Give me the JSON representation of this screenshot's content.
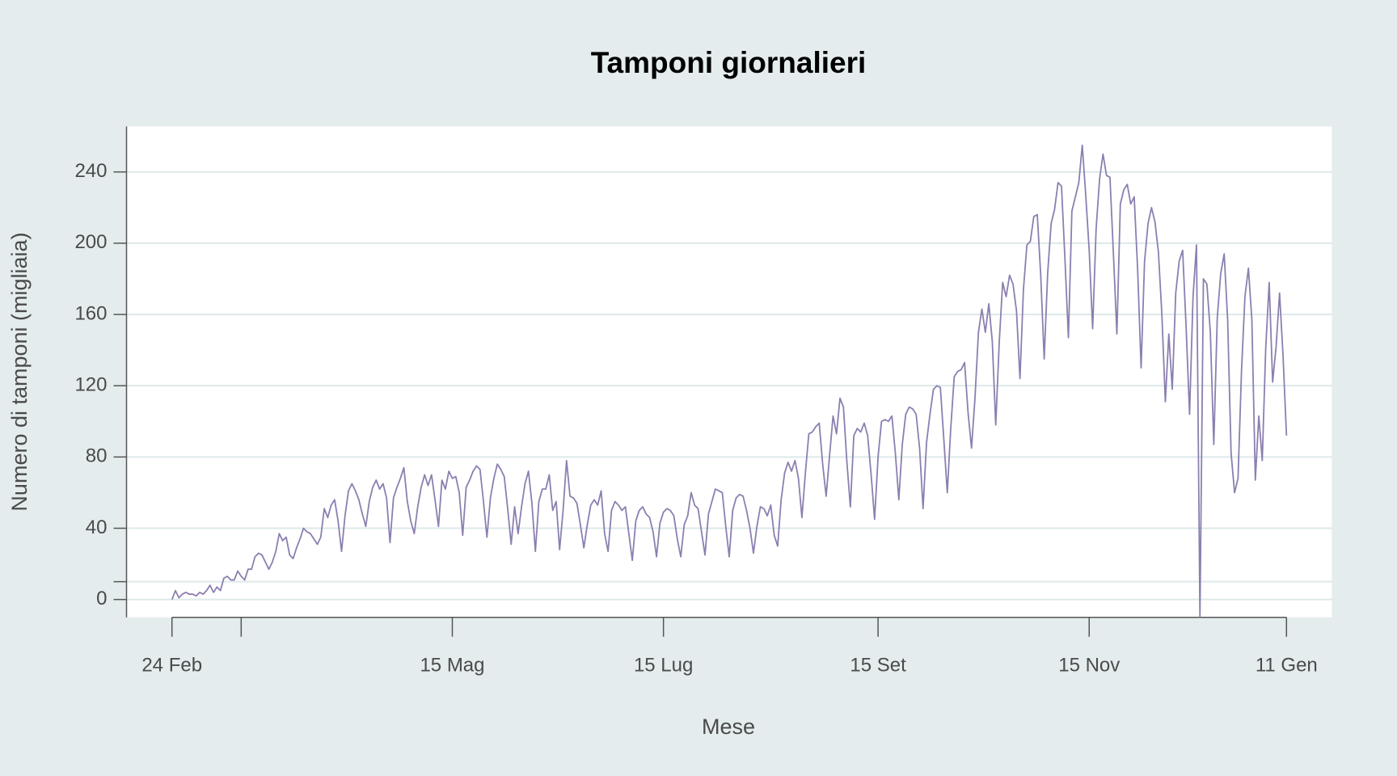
{
  "chart_data": {
    "type": "line",
    "title": "Tamponi giornalieri",
    "x_label": "Mese",
    "y_label": "Numero di tamponi (migliaia)",
    "color": "#8c7fb0",
    "grid": true,
    "x": [
      "24 Feb",
      "25 Feb",
      "26 Feb",
      "27 Feb",
      "28 Feb",
      "29 Feb",
      "1 Mar",
      "2 Mar",
      "3 Mar",
      "4 Mar",
      "5 Mar",
      "6 Mar",
      "7 Mar",
      "8 Mar",
      "9 Mar",
      "10 Mar",
      "11 Mar",
      "12 Mar",
      "13 Mar",
      "14 Mar",
      "15 Mar",
      "16 Mar",
      "17 Mar",
      "18 Mar",
      "19 Mar",
      "20 Mar",
      "21 Mar",
      "22 Mar",
      "23 Mar",
      "24 Mar",
      "25 Mar",
      "26 Mar",
      "27 Mar",
      "28 Mar",
      "29 Mar",
      "30 Mar",
      "31 Mar",
      "1 Apr",
      "2 Apr",
      "3 Apr",
      "4 Apr",
      "5 Apr",
      "6 Apr",
      "7 Apr",
      "8 Apr",
      "9 Apr",
      "10 Apr",
      "11 Apr",
      "12 Apr",
      "13 Apr",
      "14 Apr",
      "15 Apr",
      "16 Apr",
      "17 Apr",
      "18 Apr",
      "19 Apr",
      "20 Apr",
      "21 Apr",
      "22 Apr",
      "23 Apr",
      "24 Apr",
      "25 Apr",
      "26 Apr",
      "27 Apr",
      "28 Apr",
      "29 Apr",
      "30 Apr",
      "1 Mag",
      "2 Mag",
      "3 Mag",
      "4 Mag",
      "5 Mag",
      "6 Mag",
      "7 Mag",
      "8 Mag",
      "9 Mag",
      "10 Mag",
      "11 Mag",
      "12 Mag",
      "13 Mag",
      "14 Mag",
      "15 Mag",
      "16 Mag",
      "17 Mag",
      "18 Mag",
      "19 Mag",
      "20 Mag",
      "21 Mag",
      "22 Mag",
      "23 Mag",
      "24 Mag",
      "25 Mag",
      "26 Mag",
      "27 Mag",
      "28 Mag",
      "29 Mag",
      "30 Mag",
      "31 Mag",
      "1 Giu",
      "2 Giu",
      "3 Giu",
      "4 Giu",
      "5 Giu",
      "6 Giu",
      "7 Giu",
      "8 Giu",
      "9 Giu",
      "10 Giu",
      "11 Giu",
      "12 Giu",
      "13 Giu",
      "14 Giu",
      "15 Giu",
      "16 Giu",
      "17 Giu",
      "18 Giu",
      "19 Giu",
      "20 Giu",
      "21 Giu",
      "22 Giu",
      "23 Giu",
      "24 Giu",
      "25 Giu",
      "26 Giu",
      "27 Giu",
      "28 Giu",
      "29 Giu",
      "30 Giu",
      "1 Lug",
      "2 Lug",
      "3 Lug",
      "4 Lug",
      "5 Lug",
      "6 Lug",
      "7 Lug",
      "8 Lug",
      "9 Lug",
      "10 Lug",
      "11 Lug",
      "12 Lug",
      "13 Lug",
      "14 Lug",
      "15 Lug",
      "16 Lug",
      "17 Lug",
      "18 Lug",
      "19 Lug",
      "20 Lug",
      "21 Lug",
      "22 Lug",
      "23 Lug",
      "24 Lug",
      "25 Lug",
      "26 Lug",
      "27 Lug",
      "28 Lug",
      "29 Lug",
      "30 Lug",
      "31 Lug",
      "1 Ago",
      "2 Ago",
      "3 Ago",
      "4 Ago",
      "5 Ago",
      "6 Ago",
      "7 Ago",
      "8 Ago",
      "9 Ago",
      "10 Ago",
      "11 Ago",
      "12 Ago",
      "13 Ago",
      "14 Ago",
      "15 Ago",
      "16 Ago",
      "17 Ago",
      "18 Ago",
      "19 Ago",
      "20 Ago",
      "21 Ago",
      "22 Ago",
      "23 Ago",
      "24 Ago",
      "25 Ago",
      "26 Ago",
      "27 Ago",
      "28 Ago",
      "29 Ago",
      "30 Ago",
      "31 Ago",
      "1 Set",
      "2 Set",
      "3 Set",
      "4 Set",
      "5 Set",
      "6 Set",
      "7 Set",
      "8 Set",
      "9 Set",
      "10 Set",
      "11 Set",
      "12 Set",
      "13 Set",
      "14 Set",
      "15 Set",
      "16 Set",
      "17 Set",
      "18 Set",
      "19 Set",
      "20 Set",
      "21 Set",
      "22 Set",
      "23 Set",
      "24 Set",
      "25 Set",
      "26 Set",
      "27 Set",
      "28 Set",
      "29 Set",
      "30 Set",
      "1 Ott",
      "2 Ott",
      "3 Ott",
      "4 Ott",
      "5 Ott",
      "6 Ott",
      "7 Ott",
      "8 Ott",
      "9 Ott",
      "10 Ott",
      "11 Ott",
      "12 Ott",
      "13 Ott",
      "14 Ott",
      "15 Ott",
      "16 Ott",
      "17 Ott",
      "18 Ott",
      "19 Ott",
      "20 Ott",
      "21 Ott",
      "22 Ott",
      "23 Ott",
      "24 Ott",
      "25 Ott",
      "26 Ott",
      "27 Ott",
      "28 Ott",
      "29 Ott",
      "30 Ott",
      "31 Ott",
      "1 Nov",
      "2 Nov",
      "3 Nov",
      "4 Nov",
      "5 Nov",
      "6 Nov",
      "7 Nov",
      "8 Nov",
      "9 Nov",
      "10 Nov",
      "11 Nov",
      "12 Nov",
      "13 Nov",
      "14 Nov",
      "15 Nov",
      "16 Nov",
      "17 Nov",
      "18 Nov",
      "19 Nov",
      "20 Nov",
      "21 Nov",
      "22 Nov",
      "23 Nov",
      "24 Nov",
      "25 Nov",
      "26 Nov",
      "27 Nov",
      "28 Nov",
      "29 Nov",
      "30 Nov",
      "1 Dic",
      "2 Dic",
      "3 Dic",
      "4 Dic",
      "5 Dic",
      "6 Dic",
      "7 Dic",
      "8 Dic",
      "9 Dic",
      "10 Dic",
      "11 Dic",
      "12 Dic",
      "13 Dic",
      "14 Dic",
      "15 Dic",
      "16 Dic",
      "17 Dic",
      "18 Dic",
      "19 Dic",
      "20 Dic",
      "21 Dic",
      "22 Dic",
      "23 Dic",
      "24 Dic",
      "25 Dic",
      "26 Dic",
      "27 Dic",
      "28 Dic",
      "29 Dic",
      "30 Dic",
      "31 Dic",
      "1 Gen",
      "2 Gen",
      "3 Gen",
      "4 Gen",
      "5 Gen",
      "6 Gen",
      "7 Gen",
      "8 Gen",
      "9 Gen",
      "10 Gen",
      "11 Gen"
    ],
    "values": [
      0,
      5,
      1,
      3,
      4,
      3,
      3,
      2,
      4,
      3,
      5,
      8,
      4,
      7,
      5,
      12,
      13,
      11,
      11,
      16,
      13,
      11,
      17,
      17,
      24,
      26,
      25,
      21,
      17,
      21,
      27,
      37,
      33,
      35,
      25,
      23,
      29,
      34,
      40,
      38,
      37,
      34,
      31,
      35,
      51,
      46,
      53,
      56,
      44,
      27,
      47,
      61,
      65,
      61,
      56,
      48,
      41,
      55,
      63,
      67,
      62,
      65,
      57,
      32,
      57,
      63,
      68,
      74,
      55,
      44,
      37,
      52,
      63,
      70,
      64,
      70,
      56,
      41,
      67,
      62,
      72,
      68,
      69,
      60,
      36,
      63,
      67,
      72,
      75,
      73,
      55,
      35,
      57,
      68,
      76,
      73,
      69,
      51,
      31,
      52,
      37,
      52,
      65,
      72,
      54,
      27,
      55,
      62,
      62,
      70,
      50,
      55,
      28,
      50,
      78,
      58,
      57,
      54,
      42,
      29,
      42,
      53,
      56,
      53,
      61,
      37,
      27,
      50,
      55,
      53,
      50,
      52,
      37,
      22,
      44,
      50,
      52,
      48,
      46,
      38,
      24,
      43,
      49,
      51,
      50,
      47,
      34,
      24,
      42,
      47,
      60,
      53,
      51,
      38,
      25,
      48,
      55,
      62,
      61,
      60,
      41,
      24,
      50,
      57,
      59,
      58,
      50,
      40,
      26,
      41,
      52,
      51,
      47,
      53,
      36,
      30,
      56,
      71,
      77,
      72,
      78,
      68,
      46,
      71,
      93,
      94,
      97,
      99,
      76,
      58,
      81,
      103,
      93,
      113,
      108,
      77,
      52,
      92,
      96,
      94,
      99,
      92,
      70,
      45,
      80,
      100,
      101,
      100,
      103,
      82,
      56,
      87,
      104,
      108,
      107,
      104,
      85,
      51,
      88,
      104,
      118,
      120,
      119,
      90,
      60,
      96,
      125,
      128,
      129,
      133,
      105,
      85,
      113,
      150,
      163,
      150,
      166,
      145,
      98,
      144,
      178,
      170,
      182,
      177,
      162,
      124,
      174,
      199,
      201,
      215,
      216,
      182,
      135,
      183,
      211,
      219,
      234,
      232,
      191,
      147,
      218,
      226,
      234,
      255,
      227,
      196,
      152,
      208,
      236,
      250,
      238,
      237,
      194,
      149,
      222,
      230,
      233,
      222,
      226,
      185,
      130,
      190,
      211,
      220,
      212,
      195,
      160,
      111,
      149,
      118,
      172,
      190,
      196,
      153,
      104,
      170,
      199,
      -10,
      180,
      177,
      150,
      87,
      158,
      183,
      194,
      157,
      82,
      60,
      68,
      128,
      170,
      186,
      157,
      67,
      103,
      78,
      141,
      178,
      122,
      142,
      172,
      137,
      92
    ],
    "xticks": [
      "24 Feb",
      {
        "value": "15 Mar",
        "label": null
      },
      "15 Mag",
      "15 Lug",
      "15 Set",
      "15 Nov",
      "11 Gen"
    ],
    "ylim": [
      -10,
      265.5
    ],
    "yticks": [
      0,
      {
        "value": 10,
        "label": null
      },
      40,
      80,
      120,
      160,
      200,
      240
    ]
  }
}
